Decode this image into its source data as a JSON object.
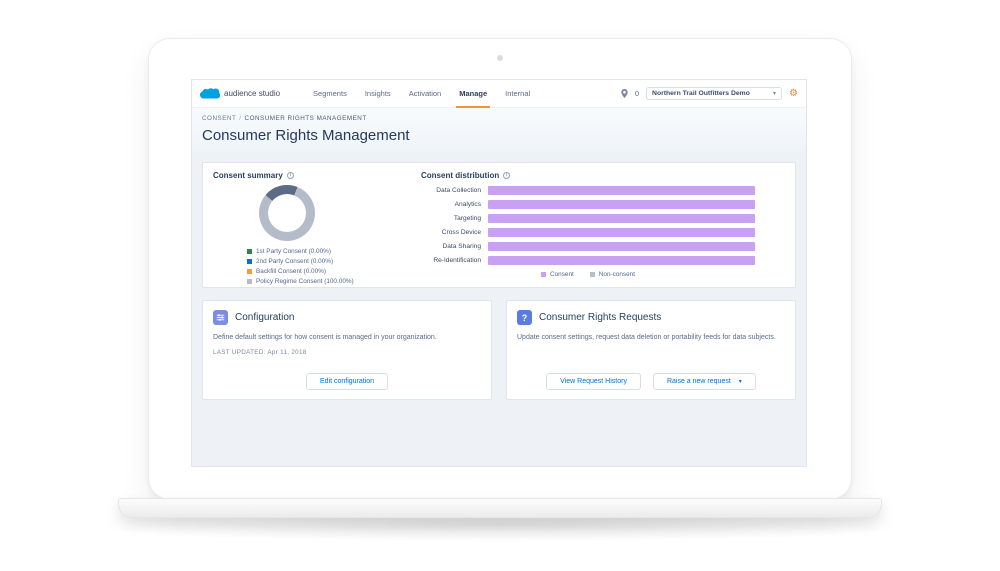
{
  "nav": {
    "brand": "audience studio",
    "items": [
      "Segments",
      "Insights",
      "Activation",
      "Manage",
      "Internal"
    ],
    "active_item": "Manage",
    "pin_count": "0",
    "org_selector": "Northern Trail Outfitters Demo",
    "accent_color": "#f0953f"
  },
  "breadcrumb": {
    "parent": "CONSENT",
    "separator": "/",
    "current": "CONSUMER RIGHTS MANAGEMENT"
  },
  "page": {
    "title": "Consumer Rights Management"
  },
  "chart_data": [
    {
      "type": "pie",
      "title": "Consent summary",
      "labels": [
        "1st Party Consent (0.00%)",
        "2nd Party Consent (0.00%)",
        "Backfill Consent (0.00%)",
        "Policy Regime Consent (100.00%)"
      ],
      "values": [
        0,
        0,
        0,
        100
      ],
      "colors": [
        "#2e844a",
        "#0070d2",
        "#fb9a3c",
        "#b4bcc9"
      ],
      "legend_position": "bottom-left"
    },
    {
      "type": "bar",
      "title": "Consent distribution",
      "orientation": "horizontal",
      "categories": [
        "Data Collection",
        "Analytics",
        "Targeting",
        "Cross Device",
        "Data Sharing",
        "Re-Identification"
      ],
      "series": [
        {
          "name": "Consent",
          "color": "#c9a1f2",
          "values": [
            100,
            100,
            100,
            100,
            100,
            100
          ]
        },
        {
          "name": "Non-consent",
          "color": "#b4bfcc",
          "values": [
            0,
            0,
            0,
            0,
            0,
            0
          ]
        }
      ],
      "xlim": [
        0,
        100
      ],
      "grid": false,
      "legend_position": "bottom"
    }
  ],
  "cards": {
    "configuration": {
      "title": "Configuration",
      "description": "Define default settings for how consent is managed in your organization.",
      "last_updated": "LAST UPDATED: Apr 11, 2018",
      "button": "Edit configuration",
      "icon_color": "#7d8ee2"
    },
    "requests": {
      "title": "Consumer Rights Requests",
      "description": "Update consent settings, request data deletion or portability feeds for data subjects.",
      "buttons": [
        "View Request History",
        "Raise a new request"
      ],
      "icon_color": "#5a7be0"
    }
  }
}
